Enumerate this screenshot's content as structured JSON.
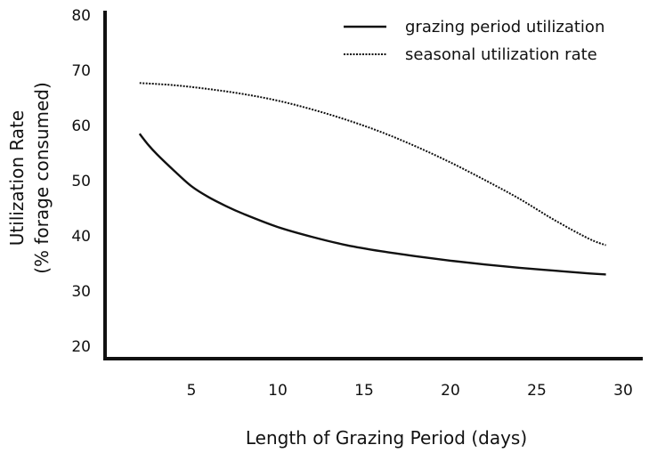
{
  "chart_data": {
    "type": "line",
    "title": "",
    "xlabel": "Length of Grazing Period  (days)",
    "ylabel_line1": "Utilization Rate",
    "ylabel_line2": "(% forage consumed)",
    "xlim": [
      0,
      30
    ],
    "ylim": [
      17.8,
      80
    ],
    "xticks": [
      "5",
      "10",
      "15",
      "20",
      "25",
      "30"
    ],
    "xtick_values": [
      5,
      10,
      15,
      20,
      25,
      30
    ],
    "yticks": [
      "20",
      "30",
      "40",
      "50",
      "60",
      "70",
      "80"
    ],
    "ytick_values": [
      20,
      30,
      40,
      50,
      60,
      70,
      80
    ],
    "grid": false,
    "legend_position": "top-right",
    "series": [
      {
        "name": "grazing period utilization",
        "style": "solid",
        "color": "#111111",
        "x": [
          2,
          2.5,
          3,
          4,
          5,
          6,
          7,
          8,
          10,
          12,
          14,
          16,
          18,
          20,
          22,
          24,
          26,
          28,
          29
        ],
        "y": [
          58.5,
          56.5,
          54.8,
          51.8,
          49.0,
          47.0,
          45.4,
          44.0,
          41.6,
          39.8,
          38.3,
          37.2,
          36.3,
          35.5,
          34.8,
          34.2,
          33.7,
          33.2,
          33.0
        ]
      },
      {
        "name": "seasonal utilization rate",
        "style": "dotted",
        "color": "#111111",
        "x": [
          2,
          4,
          6,
          8,
          10,
          12,
          14,
          16,
          18,
          20,
          22,
          24,
          26,
          28,
          29
        ],
        "y": [
          67.7,
          67.3,
          66.6,
          65.7,
          64.5,
          62.9,
          61.0,
          58.8,
          56.2,
          53.3,
          50.1,
          46.7,
          42.9,
          39.5,
          38.3
        ]
      }
    ]
  }
}
